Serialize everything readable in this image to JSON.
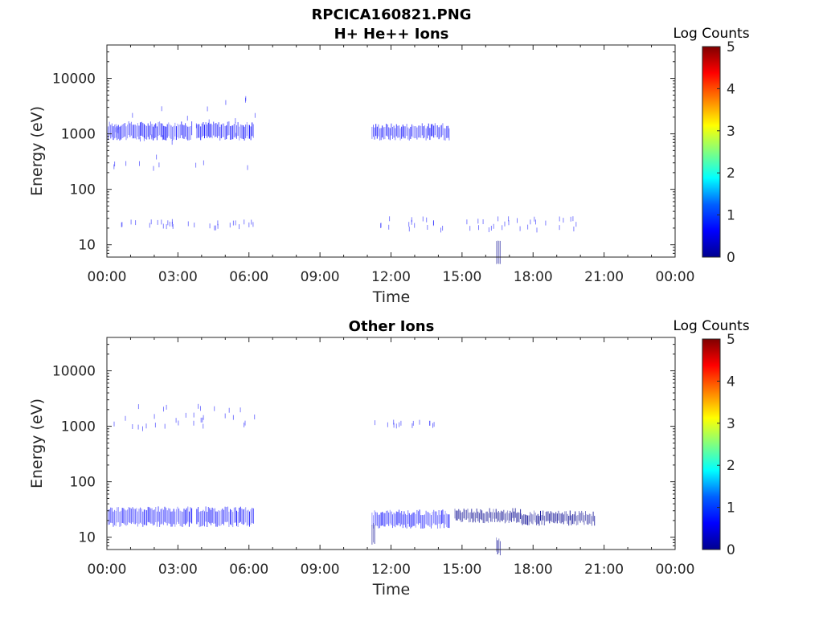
{
  "figure": {
    "title": "RPCICA160821.PNG"
  },
  "colormap": [
    "#00008f",
    "#0000ff",
    "#0080ff",
    "#00ffff",
    "#80ff80",
    "#ffff00",
    "#ff8000",
    "#ff0000",
    "#800000"
  ],
  "chart_data": [
    {
      "type": "heatmap",
      "title": "H+ He++ Ions",
      "xlabel": "Time",
      "ylabel": "Energy (eV)",
      "x_tick_labels": [
        "00:00",
        "03:00",
        "06:00",
        "09:00",
        "12:00",
        "15:00",
        "18:00",
        "21:00",
        "00:00"
      ],
      "x_ticks_hours": [
        0,
        3,
        6,
        9,
        12,
        15,
        18,
        21,
        24
      ],
      "xlim_hours": [
        0,
        24
      ],
      "y_scale": "log",
      "ylim": [
        6,
        40000
      ],
      "y_tick_values": [
        10,
        100,
        1000,
        10000
      ],
      "y_tick_labels": [
        "10",
        "100",
        "1000",
        "10000"
      ],
      "colorbar": {
        "label": "Log Counts",
        "min": 0,
        "max": 5,
        "tick_labels": [
          "0",
          "1",
          "2",
          "3",
          "4",
          "5"
        ]
      },
      "bands": [
        {
          "t_start": 0.0,
          "t_end": 3.6,
          "e_low": 850,
          "e_high": 1500,
          "log_counts": 0.9
        },
        {
          "t_start": 3.8,
          "t_end": 6.2,
          "e_low": 850,
          "e_high": 1500,
          "log_counts": 0.9
        },
        {
          "t_start": 11.2,
          "t_end": 14.5,
          "e_low": 850,
          "e_high": 1400,
          "log_counts": 0.85
        },
        {
          "t_start": 16.45,
          "t_end": 16.65,
          "e_low": 5,
          "e_high": 13,
          "log_counts": 0.1
        }
      ],
      "sparse_points": [
        {
          "t_range": [
            0.3,
            6.3
          ],
          "e_low": 20,
          "e_high": 28,
          "log_counts": 0.6
        },
        {
          "t_range": [
            11.2,
            20.0
          ],
          "e_low": 18,
          "e_high": 30,
          "log_counts": 0.6
        },
        {
          "t_range": [
            0.2,
            6.3
          ],
          "e_low": 200,
          "e_high": 5000,
          "log_counts": 0.6
        }
      ]
    },
    {
      "type": "heatmap",
      "title": "Other Ions",
      "xlabel": "Time",
      "ylabel": "Energy (eV)",
      "x_tick_labels": [
        "00:00",
        "03:00",
        "06:00",
        "09:00",
        "12:00",
        "15:00",
        "18:00",
        "21:00",
        "00:00"
      ],
      "x_ticks_hours": [
        0,
        3,
        6,
        9,
        12,
        15,
        18,
        21,
        24
      ],
      "xlim_hours": [
        0,
        24
      ],
      "y_scale": "log",
      "ylim": [
        6,
        40000
      ],
      "y_tick_values": [
        10,
        100,
        1000,
        10000
      ],
      "y_tick_labels": [
        "10",
        "100",
        "1000",
        "10000"
      ],
      "colorbar": {
        "label": "Log Counts",
        "min": 0,
        "max": 5,
        "tick_labels": [
          "0",
          "1",
          "2",
          "3",
          "4",
          "5"
        ]
      },
      "bands": [
        {
          "t_start": 0.0,
          "t_end": 3.6,
          "e_low": 17,
          "e_high": 32,
          "log_counts": 0.5
        },
        {
          "t_start": 3.8,
          "t_end": 6.2,
          "e_low": 17,
          "e_high": 32,
          "log_counts": 0.5
        },
        {
          "t_start": 11.2,
          "t_end": 14.5,
          "e_low": 16,
          "e_high": 28,
          "log_counts": 0.5
        },
        {
          "t_start": 11.2,
          "t_end": 11.35,
          "e_low": 8,
          "e_high": 18,
          "log_counts": 0.3
        },
        {
          "t_start": 14.7,
          "t_end": 17.5,
          "e_low": 20,
          "e_high": 30,
          "log_counts": 0.05
        },
        {
          "t_start": 17.5,
          "t_end": 20.6,
          "e_low": 18,
          "e_high": 27,
          "log_counts": 0.15
        },
        {
          "t_start": 16.45,
          "t_end": 16.65,
          "e_low": 5,
          "e_high": 9,
          "log_counts": 0.1
        }
      ],
      "sparse_points": [
        {
          "t_range": [
            0.2,
            6.3
          ],
          "e_low": 900,
          "e_high": 2300,
          "log_counts": 0.6
        },
        {
          "t_range": [
            11.2,
            14.0
          ],
          "e_low": 1000,
          "e_high": 1200,
          "log_counts": 0.6
        }
      ]
    }
  ]
}
